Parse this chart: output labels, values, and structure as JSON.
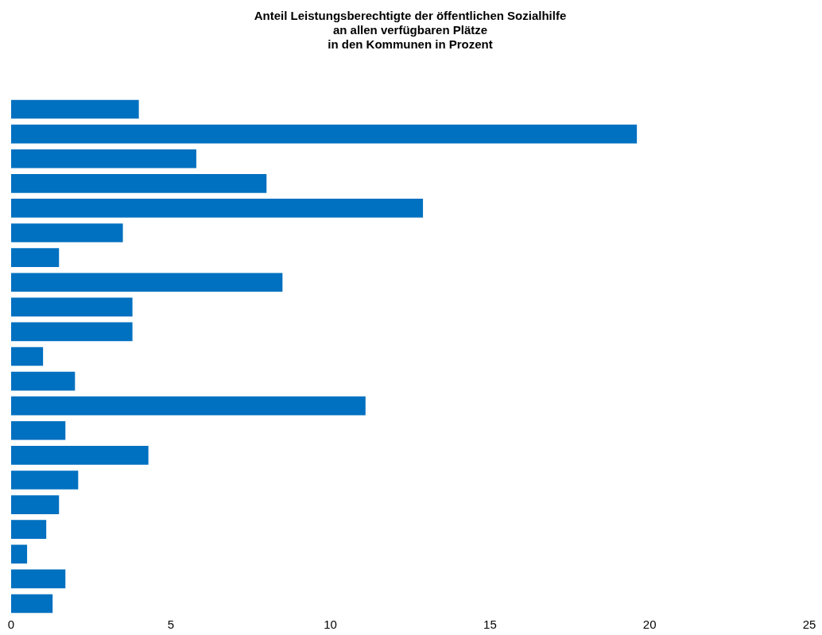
{
  "chart_data": {
    "type": "bar",
    "orientation": "horizontal",
    "title": "Anteil Leistungsberechtigte der öffentlichen Sozialhilfe\nan allen verfügbaren Plätze\nin den Kommunen in Prozent",
    "categories": [
      null,
      null,
      null,
      null,
      null,
      null,
      null,
      null,
      null,
      null,
      null,
      null,
      null,
      null,
      null,
      null,
      null,
      null,
      null,
      null,
      null
    ],
    "values": [
      4.0,
      19.6,
      5.8,
      8.0,
      12.9,
      3.5,
      1.5,
      8.5,
      3.8,
      3.8,
      1.0,
      2.0,
      11.1,
      1.7,
      4.3,
      2.1,
      1.5,
      1.1,
      0.5,
      1.7,
      1.3
    ],
    "color": "#0070c0",
    "xlim": [
      0,
      25
    ],
    "xticks": [
      0,
      5,
      10,
      15,
      20,
      25
    ],
    "grid": false,
    "tick_labels": "x"
  }
}
